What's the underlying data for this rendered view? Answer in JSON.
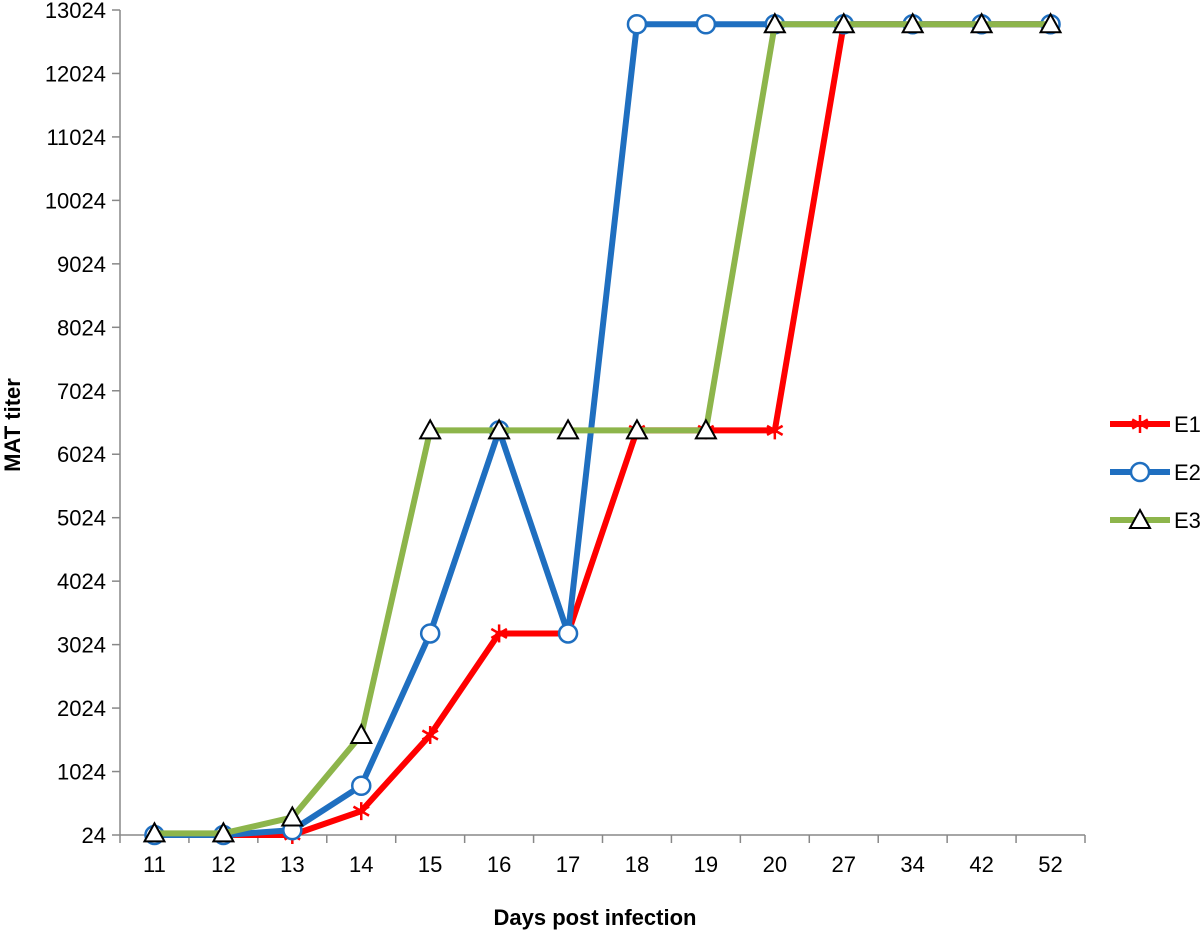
{
  "chart_data": {
    "type": "line",
    "xlabel": "Days post infection",
    "ylabel": "MAT titer",
    "categories": [
      "11",
      "12",
      "13",
      "14",
      "15",
      "16",
      "17",
      "18",
      "19",
      "20",
      "27",
      "34",
      "42",
      "52"
    ],
    "y_ticks": [
      24,
      1024,
      2024,
      3024,
      4024,
      5024,
      6024,
      7024,
      8024,
      9024,
      10024,
      11024,
      12024,
      13024
    ],
    "ylim": [
      24,
      13024
    ],
    "grid": false,
    "legend_position": "right",
    "series": [
      {
        "name": "E1",
        "color": "#ff0000",
        "marker": "asterisk",
        "values": [
          24,
          24,
          24,
          400,
          1600,
          3200,
          3200,
          6400,
          6400,
          6400,
          12800,
          12800,
          12800,
          12800
        ]
      },
      {
        "name": "E2",
        "color": "#1f6fc0",
        "marker": "circle",
        "values": [
          24,
          24,
          100,
          800,
          3200,
          6400,
          3200,
          12800,
          12800,
          12800,
          12800,
          12800,
          12800,
          12800
        ]
      },
      {
        "name": "E3",
        "color": "#8db54b",
        "marker": "triangle",
        "values": [
          50,
          50,
          300,
          1600,
          6400,
          6400,
          6400,
          6400,
          6400,
          12800,
          12800,
          12800,
          12800,
          12800
        ]
      }
    ]
  }
}
